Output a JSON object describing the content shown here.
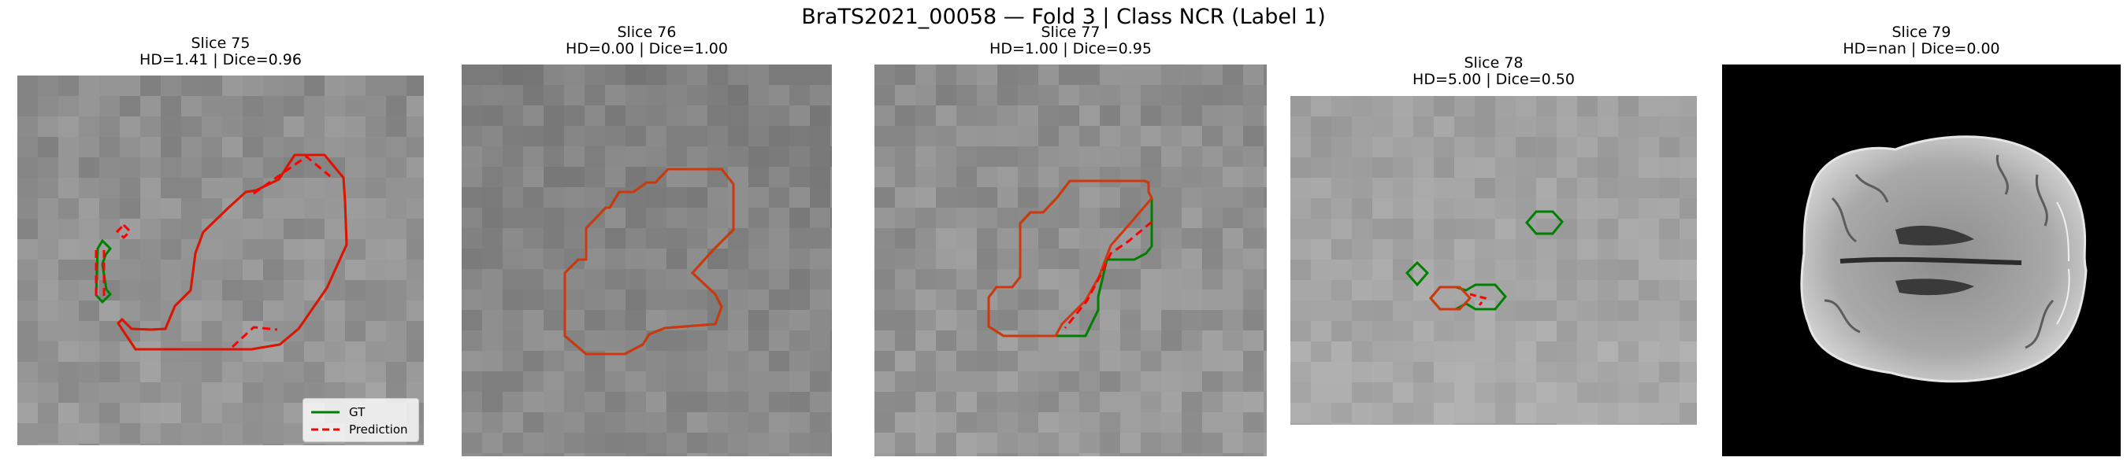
{
  "figure": {
    "suptitle": "BraTS2021_00058 — Fold 3 | Class NCR (Label 1)"
  },
  "panels": [
    {
      "slice": "Slice 75",
      "metrics": "HD=1.41 | Dice=0.96"
    },
    {
      "slice": "Slice 76",
      "metrics": "HD=0.00 | Dice=1.00"
    },
    {
      "slice": "Slice 77",
      "metrics": "HD=1.00 | Dice=0.95"
    },
    {
      "slice": "Slice 78",
      "metrics": "HD=5.00 | Dice=0.50"
    },
    {
      "slice": "Slice 79",
      "metrics": "HD=nan | Dice=0.00"
    }
  ],
  "legend": {
    "gt_label": "GT",
    "pred_label": "Prediction"
  },
  "colors": {
    "ground_truth": "#008000",
    "prediction": "#ff0000",
    "overlap": "#c03a00"
  }
}
